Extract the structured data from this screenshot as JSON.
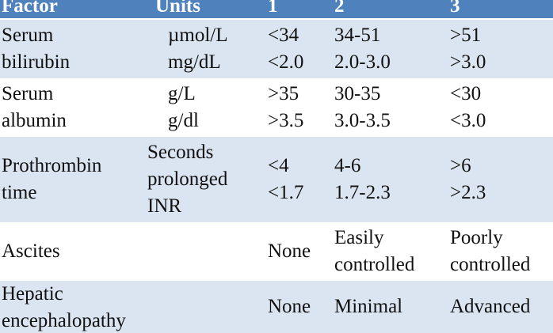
{
  "table": {
    "header": [
      "Factor",
      "Units",
      "1",
      "2",
      "3"
    ],
    "rows": [
      [
        [
          "Serum",
          "bilirubin"
        ],
        [
          "µmol/L",
          "mg/dL"
        ],
        [
          "<34",
          "<2.0"
        ],
        [
          "34-51",
          "2.0-3.0"
        ],
        [
          ">51",
          ">3.0"
        ]
      ],
      [
        [
          "Serum",
          "albumin"
        ],
        [
          "g/L",
          "g/dl"
        ],
        [
          ">35",
          ">3.5"
        ],
        [
          "30-35",
          "3.0-3.5"
        ],
        [
          "<30",
          "<3.0"
        ]
      ],
      [
        [
          "Prothrombin",
          "time"
        ],
        [
          "Seconds",
          "prolonged",
          "INR"
        ],
        [
          "<4",
          "<1.7"
        ],
        [
          "4-6",
          "1.7-2.3"
        ],
        [
          ">6",
          ">2.3"
        ]
      ],
      [
        [
          "Ascites"
        ],
        [],
        [
          "None"
        ],
        [
          "Easily",
          "controlled"
        ],
        [
          "Poorly",
          "controlled"
        ]
      ],
      [
        [
          "Hepatic",
          "encephalopathy"
        ],
        [],
        [
          "None"
        ],
        [
          "Minimal"
        ],
        [
          "Advanced"
        ]
      ]
    ]
  }
}
